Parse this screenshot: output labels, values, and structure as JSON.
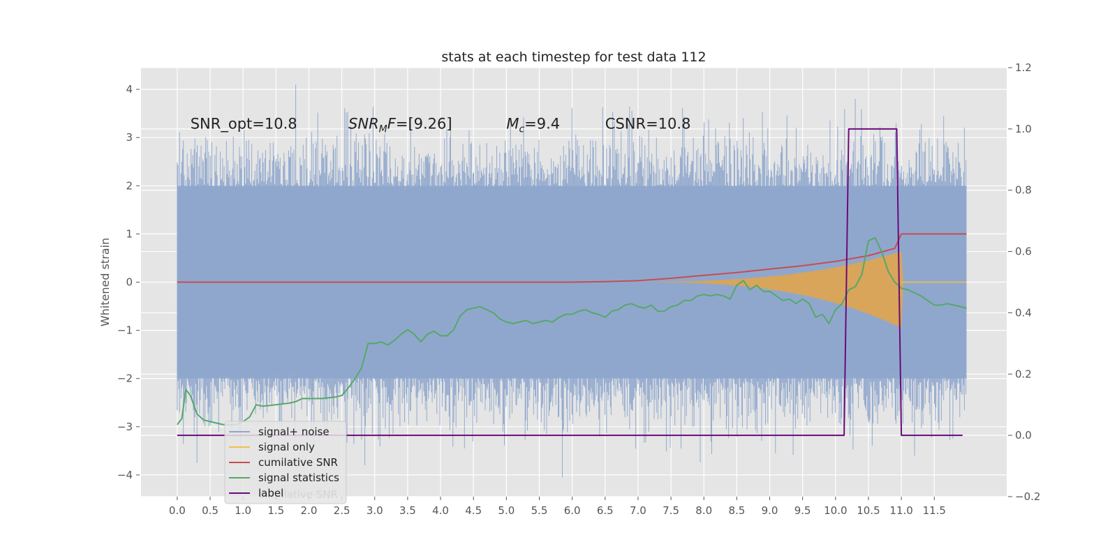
{
  "chart_data": {
    "type": "line",
    "title": "stats at each timestep for test data 112",
    "ylabel": "Whitened strain",
    "y2label": "",
    "xlim": [
      -0.55,
      12.6
    ],
    "ylim": [
      -4.45,
      4.45
    ],
    "y2lim": [
      -0.2,
      1.2
    ],
    "xticks": [
      0.0,
      0.5,
      1.0,
      1.5,
      2.0,
      2.5,
      3.0,
      3.5,
      4.0,
      4.5,
      5.0,
      5.5,
      6.0,
      6.5,
      7.0,
      7.5,
      8.0,
      8.5,
      9.0,
      9.5,
      10.0,
      10.5,
      11.0,
      11.5
    ],
    "xtick_labels": [
      "0.0",
      "0.5",
      "1.0",
      "1.5",
      "2.0",
      "2.5",
      "3.0",
      "3.5",
      "4.0",
      "4.5",
      "5.0",
      "5.5",
      "6.0",
      "6.5",
      "7.0",
      "7.5",
      "8.0",
      "8.5",
      "9.0",
      "9.5",
      "10.0",
      "10.5",
      "11.0",
      "11.5"
    ],
    "yticks": [
      -4,
      -3,
      -2,
      -1,
      0,
      1,
      2,
      3,
      4
    ],
    "ytick_labels": [
      "−4",
      "−3",
      "−2",
      "−1",
      "0",
      "1",
      "2",
      "3",
      "4"
    ],
    "y2ticks": [
      -0.2,
      0.0,
      0.2,
      0.4,
      0.6,
      0.8,
      1.0,
      1.2
    ],
    "y2tick_labels": [
      "−0.2",
      "0.0",
      "0.2",
      "0.4",
      "0.6",
      "0.8",
      "1.0",
      "1.2"
    ],
    "grid": true,
    "legend_position": "bottom-left",
    "annotations": [
      {
        "text": "SNR_opt=10.8",
        "x": 0.2
      },
      {
        "text": "SNR",
        "sub": "M",
        "suffix": "F=[9.26]",
        "italic": true,
        "x": 2.6
      },
      {
        "text": "M",
        "sub": "c",
        "suffix": "=9.4",
        "italic": true,
        "x": 5.0
      },
      {
        "text": "CSNR=10.8",
        "x": 6.5
      }
    ],
    "annotation_y": 3.3,
    "noise_envelope": {
      "x_range": [
        0.0,
        11.99
      ],
      "band_top": 2.0,
      "band_bottom": -2.0,
      "peak_max": 4.1,
      "peak_min": -4.05
    },
    "series": [
      {
        "name": "signal+ noise",
        "color": "#8fa6cc",
        "axis": "left",
        "kind": "noise"
      },
      {
        "name": "signal only",
        "color": "#f0c04a",
        "axis": "left",
        "kind": "chirp",
        "start_x": 7.0,
        "peak_x": 11.0,
        "peak_amplitude": 0.95,
        "end_x": 11.99
      },
      {
        "name": "cumilative SNR",
        "color": "#c44e52",
        "axis": "left",
        "x": [
          0.0,
          6.0,
          6.5,
          7.0,
          7.5,
          8.0,
          8.5,
          9.0,
          9.5,
          10.0,
          10.5,
          10.9,
          11.0,
          11.99
        ],
        "y": [
          0.0,
          0.0,
          0.01,
          0.03,
          0.08,
          0.14,
          0.2,
          0.27,
          0.34,
          0.43,
          0.55,
          0.7,
          1.0,
          1.0
        ]
      },
      {
        "name": "signal statistics",
        "color": "#55a868",
        "axis": "right",
        "x": [
          0.0,
          0.07,
          0.13,
          0.2,
          0.3,
          0.4,
          0.5,
          0.6,
          0.7,
          0.8,
          0.9,
          1.0,
          1.1,
          1.2,
          1.3,
          1.5,
          1.7,
          1.8,
          1.9,
          2.0,
          2.2,
          2.4,
          2.5,
          2.6,
          2.7,
          2.8,
          2.9,
          3.0,
          3.1,
          3.2,
          3.3,
          3.4,
          3.5,
          3.6,
          3.7,
          3.8,
          3.9,
          4.0,
          4.1,
          4.2,
          4.3,
          4.4,
          4.5,
          4.6,
          4.7,
          4.8,
          4.9,
          5.0,
          5.1,
          5.2,
          5.3,
          5.4,
          5.5,
          5.6,
          5.7,
          5.8,
          5.9,
          6.0,
          6.1,
          6.2,
          6.3,
          6.4,
          6.5,
          6.6,
          6.7,
          6.8,
          6.9,
          7.0,
          7.1,
          7.2,
          7.3,
          7.4,
          7.5,
          7.6,
          7.7,
          7.8,
          7.9,
          8.0,
          8.1,
          8.2,
          8.3,
          8.4,
          8.5,
          8.6,
          8.7,
          8.8,
          8.9,
          9.0,
          9.1,
          9.2,
          9.3,
          9.4,
          9.5,
          9.6,
          9.7,
          9.8,
          9.9,
          10.0,
          10.1,
          10.2,
          10.3,
          10.4,
          10.5,
          10.6,
          10.7,
          10.8,
          10.9,
          11.0,
          11.1,
          11.2,
          11.3,
          11.4,
          11.5,
          11.6,
          11.7,
          11.8,
          11.9,
          11.99
        ],
        "y": [
          0.035,
          0.055,
          0.15,
          0.13,
          0.07,
          0.05,
          0.045,
          0.04,
          0.035,
          0.035,
          0.035,
          0.045,
          0.06,
          0.1,
          0.095,
          0.1,
          0.105,
          0.11,
          0.12,
          0.12,
          0.12,
          0.125,
          0.13,
          0.155,
          0.185,
          0.22,
          0.3,
          0.3,
          0.305,
          0.295,
          0.31,
          0.33,
          0.345,
          0.33,
          0.305,
          0.33,
          0.34,
          0.325,
          0.325,
          0.345,
          0.39,
          0.41,
          0.415,
          0.42,
          0.41,
          0.4,
          0.38,
          0.37,
          0.365,
          0.37,
          0.375,
          0.365,
          0.37,
          0.375,
          0.37,
          0.385,
          0.395,
          0.395,
          0.405,
          0.41,
          0.4,
          0.395,
          0.385,
          0.405,
          0.41,
          0.425,
          0.43,
          0.42,
          0.415,
          0.425,
          0.405,
          0.405,
          0.42,
          0.425,
          0.44,
          0.44,
          0.455,
          0.46,
          0.455,
          0.46,
          0.455,
          0.445,
          0.49,
          0.505,
          0.475,
          0.49,
          0.47,
          0.47,
          0.455,
          0.44,
          0.445,
          0.43,
          0.445,
          0.43,
          0.385,
          0.395,
          0.365,
          0.41,
          0.43,
          0.475,
          0.485,
          0.525,
          0.635,
          0.645,
          0.6,
          0.535,
          0.5,
          0.48,
          0.475,
          0.465,
          0.455,
          0.44,
          0.425,
          0.425,
          0.43,
          0.425,
          0.42,
          0.415
        ]
      },
      {
        "name": "label",
        "color": "#6a0a7a",
        "axis": "right",
        "x": [
          0.0,
          10.13,
          10.2,
          10.93,
          11.0,
          11.93
        ],
        "y": [
          0.0,
          0.0,
          1.0,
          1.0,
          0.0,
          0.0
        ]
      }
    ],
    "legend": [
      "signal+ noise",
      "signal only",
      "cumilative SNR",
      "signal statistics",
      "label"
    ],
    "legend_overlap_text": "cumilative SNR"
  }
}
